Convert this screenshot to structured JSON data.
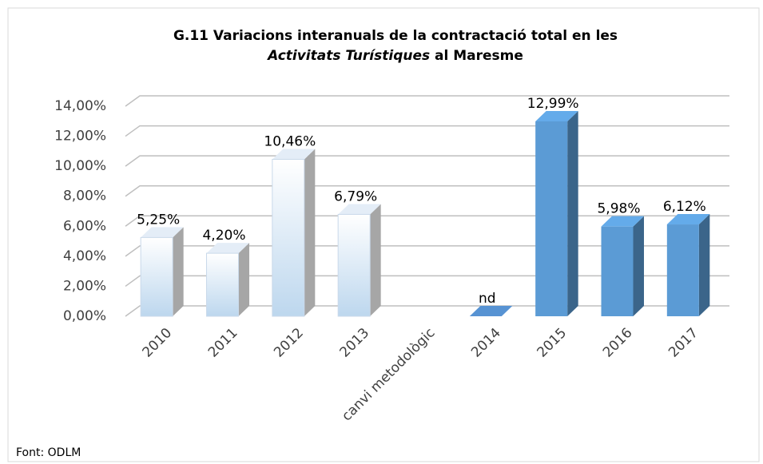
{
  "chart_data": {
    "type": "bar3d",
    "title": [
      "G.11 Variacions interanuals de la contractació total en les",
      "Activitats Turístiques",
      "al Maresme"
    ],
    "source": "Font:  ODLM",
    "categories": [
      "2010",
      "2011",
      "2012",
      "2013",
      "canvi metodològic",
      "2014",
      "2015",
      "2016",
      "2017"
    ],
    "values": [
      5.25,
      4.2,
      10.46,
      6.79,
      null,
      null,
      12.99,
      5.98,
      6.12
    ],
    "value_labels": [
      "5,25%",
      "4,20%",
      "10,46%",
      "6,79%",
      null,
      "nd",
      "12,99%",
      "5,98%",
      "6,12%"
    ],
    "colors": [
      "#bdd7ee",
      "#bdd7ee",
      "#bdd7ee",
      "#bdd7ee",
      null,
      "#4f86c0",
      "#5b9bd5",
      "#5b9bd5",
      "#5b9bd5"
    ],
    "fill_style": [
      "gradient",
      "gradient",
      "gradient",
      "gradient",
      null,
      "solid",
      "solid",
      "solid",
      "solid"
    ],
    "ylim": [
      0,
      14
    ],
    "yticks": [
      {
        "value": 0,
        "label": "0,00%"
      },
      {
        "value": 2,
        "label": "2,00%"
      },
      {
        "value": 4,
        "label": "4,00%"
      },
      {
        "value": 6,
        "label": "6,00%"
      },
      {
        "value": 8,
        "label": "8,00%"
      },
      {
        "value": 10,
        "label": "10,00%"
      },
      {
        "value": 12,
        "label": "12,00%"
      },
      {
        "value": 14,
        "label": "14,00%"
      }
    ],
    "grid": true
  }
}
